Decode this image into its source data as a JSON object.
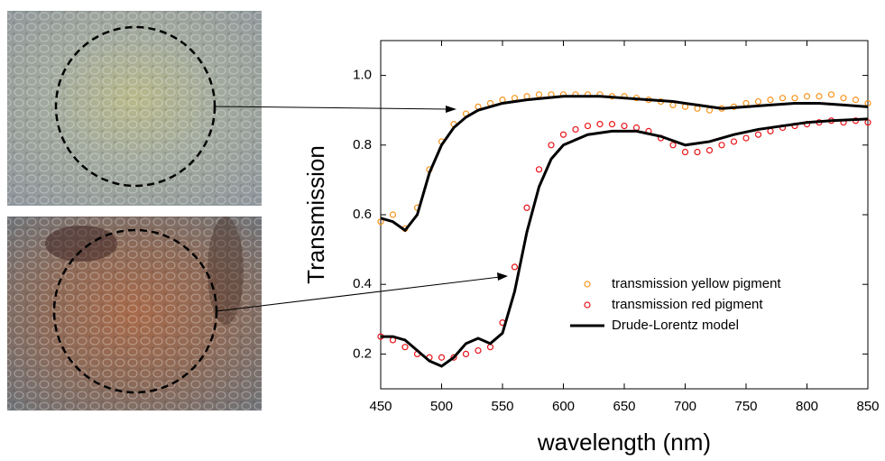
{
  "chart_data": {
    "type": "scatter",
    "xlabel": "wavelength (nm)",
    "ylabel": "Transmission",
    "xlim": [
      450,
      850
    ],
    "xticks": [
      450,
      500,
      550,
      600,
      650,
      700,
      750,
      800,
      850
    ],
    "ylim": [
      0.1,
      1.1
    ],
    "yticks": [
      0.2,
      0.4,
      0.6,
      0.8,
      {
        "value": 1,
        "label": "1.0"
      }
    ],
    "series": [
      {
        "name": "transmission yellow pigment",
        "color": "#f7941d",
        "mode": "markers",
        "x": [
          450,
          460,
          470,
          480,
          490,
          500,
          510,
          520,
          530,
          540,
          550,
          560,
          570,
          580,
          590,
          600,
          610,
          620,
          630,
          640,
          650,
          660,
          670,
          680,
          690,
          700,
          710,
          720,
          730,
          740,
          750,
          760,
          770,
          780,
          790,
          800,
          810,
          820,
          830,
          840,
          850
        ],
        "values": [
          0.58,
          0.6,
          0.56,
          0.62,
          0.73,
          0.81,
          0.86,
          0.89,
          0.91,
          0.92,
          0.93,
          0.935,
          0.94,
          0.945,
          0.945,
          0.945,
          0.945,
          0.945,
          0.945,
          0.94,
          0.94,
          0.935,
          0.93,
          0.925,
          0.915,
          0.91,
          0.905,
          0.9,
          0.905,
          0.91,
          0.92,
          0.925,
          0.93,
          0.935,
          0.935,
          0.94,
          0.94,
          0.945,
          0.935,
          0.93,
          0.92
        ]
      },
      {
        "name": "transmission red pigment",
        "color": "#e8141a",
        "mode": "markers",
        "x": [
          450,
          460,
          470,
          480,
          490,
          500,
          510,
          520,
          530,
          540,
          550,
          560,
          570,
          580,
          590,
          600,
          610,
          620,
          630,
          640,
          650,
          660,
          670,
          680,
          690,
          700,
          710,
          720,
          730,
          740,
          750,
          760,
          770,
          780,
          790,
          800,
          810,
          820,
          830,
          840,
          850
        ],
        "values": [
          0.25,
          0.24,
          0.22,
          0.2,
          0.19,
          0.19,
          0.19,
          0.2,
          0.21,
          0.22,
          0.29,
          0.45,
          0.62,
          0.73,
          0.8,
          0.83,
          0.845,
          0.855,
          0.86,
          0.86,
          0.855,
          0.85,
          0.84,
          0.82,
          0.8,
          0.78,
          0.78,
          0.785,
          0.8,
          0.81,
          0.82,
          0.83,
          0.84,
          0.85,
          0.855,
          0.86,
          0.865,
          0.87,
          0.865,
          0.87,
          0.865
        ]
      },
      {
        "name": "Drude-Lorentz model",
        "color": "#000000",
        "mode": "line",
        "x": [
          450,
          460,
          470,
          480,
          490,
          500,
          510,
          520,
          530,
          540,
          550,
          570,
          600,
          630,
          650,
          670,
          690,
          710,
          730,
          750,
          770,
          790,
          810,
          830,
          850
        ],
        "values": [
          0.59,
          0.58,
          0.555,
          0.6,
          0.72,
          0.8,
          0.85,
          0.88,
          0.9,
          0.91,
          0.92,
          0.93,
          0.94,
          0.94,
          0.935,
          0.93,
          0.925,
          0.915,
          0.905,
          0.91,
          0.915,
          0.92,
          0.92,
          0.915,
          0.91
        ]
      },
      {
        "color": "#000000",
        "mode": "line",
        "x": [
          450,
          460,
          470,
          480,
          490,
          500,
          510,
          520,
          530,
          540,
          550,
          560,
          570,
          580,
          590,
          600,
          620,
          640,
          660,
          680,
          700,
          720,
          740,
          760,
          780,
          800,
          820,
          850
        ],
        "values": [
          0.25,
          0.25,
          0.24,
          0.21,
          0.18,
          0.165,
          0.19,
          0.23,
          0.245,
          0.23,
          0.26,
          0.38,
          0.55,
          0.68,
          0.76,
          0.8,
          0.83,
          0.84,
          0.84,
          0.825,
          0.8,
          0.81,
          0.83,
          0.845,
          0.855,
          0.865,
          0.87,
          0.875
        ]
      }
    ]
  }
}
